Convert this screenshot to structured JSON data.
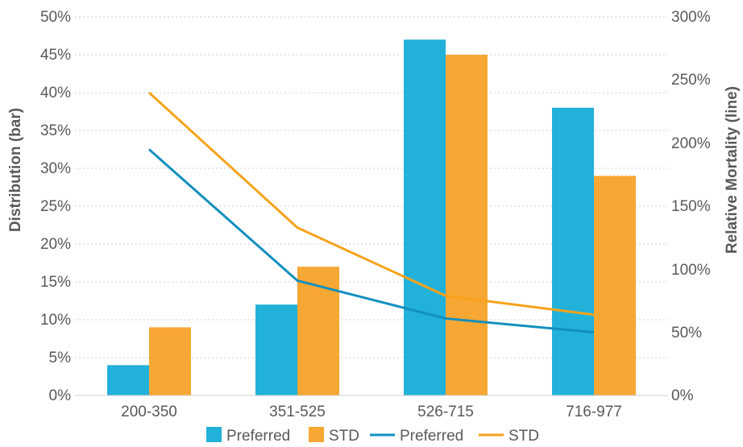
{
  "chart_data": {
    "type": "bar",
    "categories": [
      "200-350",
      "351-525",
      "526-715",
      "716-977"
    ],
    "ylabel": "Distribution (bar)",
    "y2label": "Relative Mortality (line)",
    "ylim": [
      0,
      50
    ],
    "y2lim": [
      0,
      300
    ],
    "yticks": [
      "0%",
      "5%",
      "10%",
      "15%",
      "20%",
      "25%",
      "30%",
      "35%",
      "40%",
      "45%",
      "50%"
    ],
    "y2ticks": [
      "0%",
      "50%",
      "100%",
      "150%",
      "200%",
      "250%",
      "300%"
    ],
    "grid": true,
    "legend_position": "bottom",
    "bar_series": [
      {
        "name": "Preferred",
        "color": "#22b1d9",
        "values": [
          4,
          12,
          47,
          38
        ]
      },
      {
        "name": "STD",
        "color": "#f7a733",
        "values": [
          9,
          17,
          45,
          29
        ]
      }
    ],
    "line_series": [
      {
        "name": "Preferred",
        "color": "#138fbf",
        "values": [
          195,
          91,
          61,
          50
        ]
      },
      {
        "name": "STD",
        "color": "#f7a21b",
        "values": [
          240,
          133,
          79,
          64
        ]
      }
    ]
  }
}
